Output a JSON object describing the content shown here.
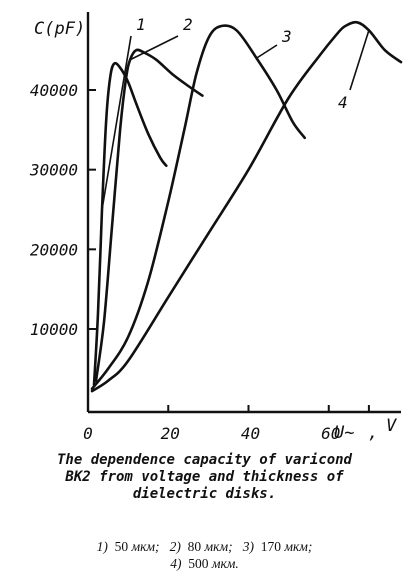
{
  "chart_data": {
    "type": "line",
    "ylabel": "C(pF)",
    "xlabel": "U~, V",
    "xlabel_main": "U~",
    "xlabel_unit": "V",
    "xlim": [
      0,
      78
    ],
    "ylim": [
      0,
      48000
    ],
    "x_ticks": [
      "0",
      "20",
      "40",
      "60"
    ],
    "x_tick_values": [
      0,
      20,
      40,
      60
    ],
    "y_ticks": [
      "10000",
      "20000",
      "30000",
      "40000"
    ],
    "y_tick_values": [
      10000,
      20000,
      30000,
      40000
    ],
    "grid": false,
    "series": [
      {
        "name": "1",
        "x": [
          1.5,
          2.5,
          3.5,
          4.5,
          5.5,
          6.5,
          8,
          10,
          12,
          15,
          18,
          19.5
        ],
        "y": [
          3000,
          12000,
          25000,
          36000,
          41500,
          43300,
          42800,
          41000,
          38300,
          34500,
          31500,
          30500
        ]
      },
      {
        "name": "2",
        "x": [
          2,
          4,
          6,
          8,
          9.5,
          10.5,
          12,
          14,
          17,
          21,
          25,
          28.5
        ],
        "y": [
          3500,
          11000,
          23000,
          35000,
          41500,
          43800,
          45000,
          44700,
          43800,
          42000,
          40500,
          39300
        ]
      },
      {
        "name": "3",
        "x": [
          1,
          5,
          10,
          15,
          20,
          24,
          27,
          30,
          33,
          37,
          42,
          47,
          51,
          54
        ],
        "y": [
          2500,
          5000,
          9000,
          16000,
          26000,
          35000,
          42000,
          46500,
          48000,
          47500,
          44000,
          40000,
          36000,
          34000
        ]
      },
      {
        "name": "4",
        "x": [
          1,
          5,
          10,
          20,
          30,
          40,
          50,
          58,
          62,
          64,
          67,
          70,
          74,
          78
        ],
        "y": [
          2200,
          3500,
          6000,
          14000,
          22000,
          30000,
          39000,
          44500,
          47000,
          48000,
          48500,
          47500,
          45000,
          43500
        ]
      }
    ],
    "curve_labels": [
      {
        "text": "1",
        "series": "1"
      },
      {
        "text": "2",
        "series": "2"
      },
      {
        "text": "3",
        "series": "3"
      },
      {
        "text": "4",
        "series": "4"
      }
    ]
  },
  "caption": {
    "lines": [
      "The dependence capacity of varicond",
      "BK2 from voltage and thickness of",
      "dielectric disks."
    ]
  },
  "legend": {
    "row1": [
      {
        "num": "1)",
        "value": "50",
        "unit": "мкм;"
      },
      {
        "num": "2)",
        "value": "80",
        "unit": "мкм;"
      },
      {
        "num": "3)",
        "value": "170",
        "unit": "мкм;"
      }
    ],
    "row2": [
      {
        "num": "4)",
        "value": "500",
        "unit": "мкм."
      }
    ]
  }
}
